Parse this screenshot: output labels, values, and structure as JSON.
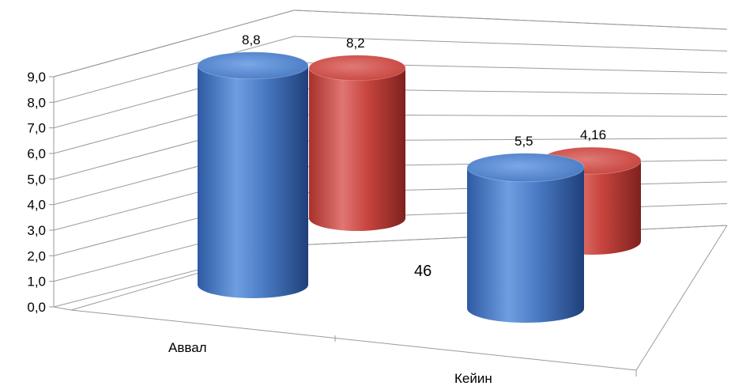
{
  "page_number": "46",
  "colors": {
    "series_blue": "#4a7bc4",
    "series_red": "#c8453f",
    "grid": "#9a9a9a"
  },
  "chart_data": {
    "type": "bar",
    "style": "3d-cylinder",
    "categories": [
      "Аввал",
      "Кейин"
    ],
    "series": [
      {
        "values": [
          8.8,
          5.5
        ],
        "labels": [
          "8,8",
          "5,5"
        ],
        "color": "#4a7bc4"
      },
      {
        "values": [
          8.2,
          4.16
        ],
        "labels": [
          "8,2",
          "4,16"
        ],
        "color": "#c8453f"
      }
    ],
    "yticks": [
      "0,0",
      "1,0",
      "2,0",
      "3,0",
      "4,0",
      "5,0",
      "6,0",
      "7,0",
      "8,0",
      "9,0"
    ],
    "ylim": [
      0,
      9
    ],
    "grid": true,
    "legend": "none"
  }
}
